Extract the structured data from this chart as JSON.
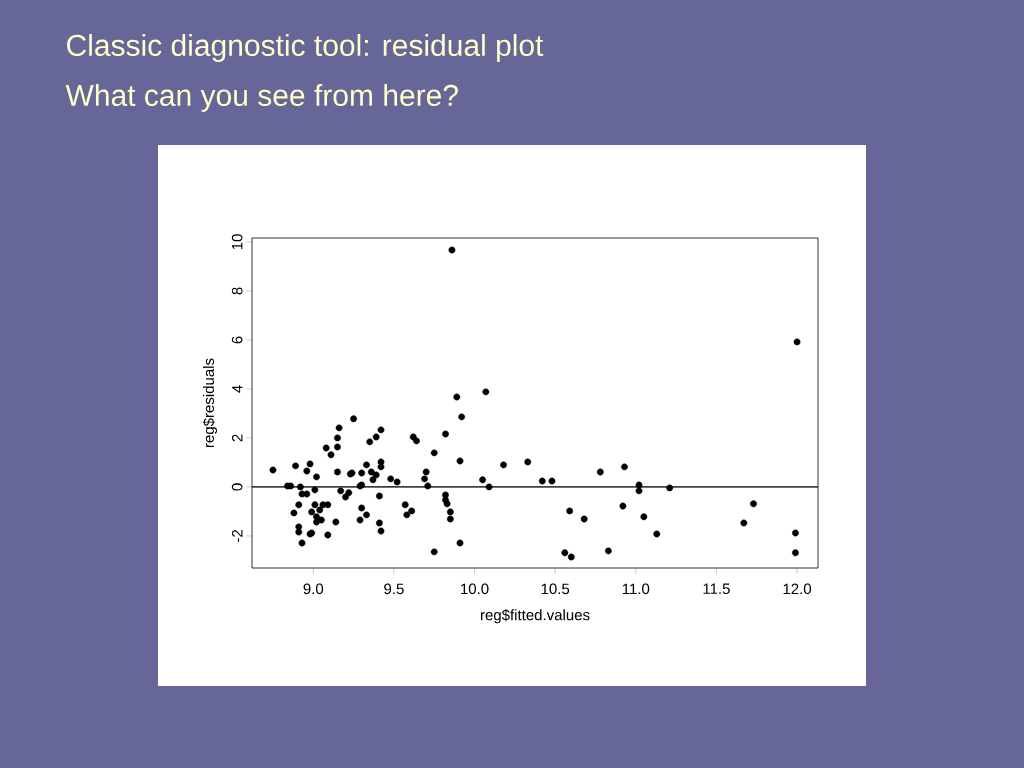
{
  "chart_data": {
    "type": "scatter",
    "title": "Classic diagnostic tool:  residual plot",
    "subtitle": "What can you see from here?",
    "xlabel": "reg$fitted.values",
    "ylabel": "reg$residuals",
    "x": [
      8.75,
      8.84,
      8.86,
      8.89,
      8.88,
      8.91,
      8.92,
      8.93,
      8.91,
      8.91,
      8.93,
      8.96,
      8.98,
      8.96,
      8.99,
      8.99,
      8.98,
      9.01,
      9.02,
      9.01,
      9.02,
      9.02,
      9.04,
      9.06,
      9.09,
      9.05,
      9.09,
      9.08,
      9.11,
      9.15,
      9.16,
      9.15,
      9.15,
      9.14,
      9.17,
      9.2,
      9.22,
      9.23,
      9.25,
      9.24,
      9.29,
      9.3,
      9.3,
      9.29,
      9.3,
      9.33,
      9.35,
      9.33,
      9.36,
      9.37,
      9.39,
      9.39,
      9.42,
      9.42,
      9.42,
      9.41,
      9.41,
      9.42,
      9.48,
      9.52,
      9.57,
      9.58,
      9.61,
      9.62,
      9.64,
      9.7,
      9.69,
      9.71,
      9.75,
      9.75,
      9.82,
      9.82,
      9.82,
      9.83,
      9.85,
      9.85,
      9.86,
      9.89,
      9.91,
      9.91,
      9.92,
      10.07,
      10.05,
      10.09,
      10.18,
      10.33,
      10.42,
      10.48,
      10.56,
      10.59,
      10.6,
      10.68,
      10.78,
      10.83,
      10.92,
      10.93,
      11.02,
      11.02,
      11.05,
      11.13,
      11.21,
      11.67,
      11.73,
      11.99,
      11.99,
      12.0
    ],
    "values": [
      0.69,
      0.04,
      0.04,
      0.86,
      -1.06,
      -0.73,
      0,
      -0.29,
      -1.63,
      -1.84,
      -2.29,
      0.65,
      0.94,
      -0.29,
      -1.02,
      -1.88,
      -1.92,
      -0.12,
      0.41,
      -0.73,
      -1.22,
      -1.43,
      -0.94,
      -0.73,
      -0.73,
      -1.35,
      -1.96,
      1.59,
      1.31,
      0.61,
      2.41,
      2.0,
      1.63,
      -1.43,
      -0.16,
      -0.41,
      -0.24,
      0.53,
      2.78,
      0.57,
      0.04,
      0.08,
      -0.86,
      -1.35,
      0.57,
      0.9,
      1.84,
      -1.14,
      0.61,
      0.29,
      0.49,
      2.04,
      2.33,
      1.02,
      0.82,
      -0.37,
      -1.47,
      -1.8,
      0.33,
      0.2,
      -0.73,
      -1.14,
      -0.98,
      2.04,
      1.88,
      0.61,
      0.33,
      0.04,
      1.39,
      -2.65,
      2.16,
      -0.33,
      -0.53,
      -0.69,
      -1.02,
      -1.31,
      9.67,
      3.67,
      1.06,
      -2.29,
      2.86,
      3.88,
      0.29,
      0,
      0.9,
      1.02,
      0.24,
      0.24,
      -2.69,
      -0.98,
      -2.86,
      -1.31,
      0.61,
      -2.61,
      -0.78,
      0.82,
      0.08,
      -0.16,
      -1.22,
      -1.92,
      -0.04,
      -1.47,
      -0.69,
      -1.88,
      -2.69,
      5.92
    ],
    "color": "#000000",
    "marker": "circle",
    "xlim": [
      8.62,
      12.13
    ],
    "ylim": [
      -3.31,
      10.16
    ],
    "xticks": [
      {
        "value": 9,
        "label": "9.0"
      },
      9.5,
      {
        "value": 10,
        "label": "10.0"
      },
      10.5,
      {
        "value": 11,
        "label": "11.0"
      },
      11.5,
      {
        "value": 12,
        "label": "12.0"
      }
    ],
    "yticks": [
      -2,
      0,
      2,
      4,
      6,
      8,
      10
    ],
    "ref_lines": [
      {
        "axis": "y",
        "value": 0,
        "color": "#000000"
      }
    ]
  }
}
